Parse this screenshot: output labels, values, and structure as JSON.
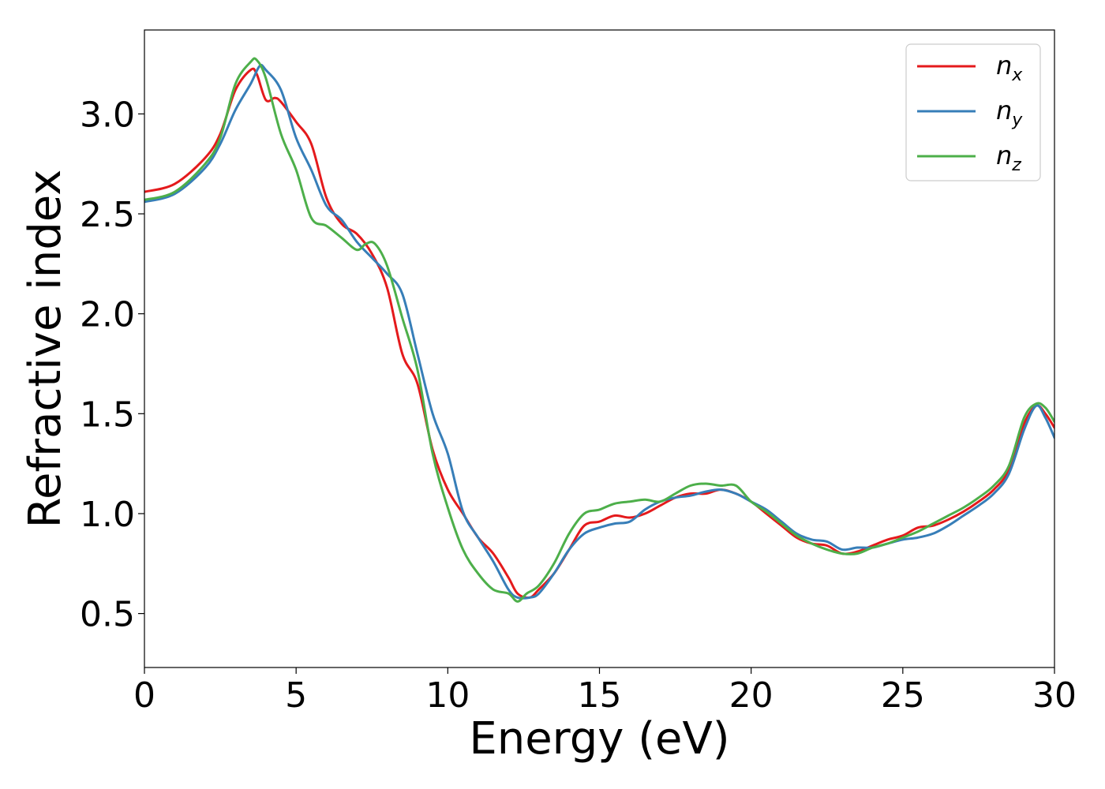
{
  "chart_data": {
    "type": "line",
    "xlabel": "Energy (eV)",
    "ylabel": "Refractive index",
    "xlim": [
      0,
      30
    ],
    "ylim": [
      0.23,
      3.42
    ],
    "xticks": [
      0,
      5,
      10,
      15,
      20,
      25,
      30
    ],
    "xtick_labels": [
      "0",
      "5",
      "10",
      "15",
      "20",
      "25",
      "30"
    ],
    "yticks": [
      0.5,
      1.0,
      1.5,
      2.0,
      2.5,
      3.0
    ],
    "ytick_labels": [
      "0.5",
      "1.0",
      "1.5",
      "2.0",
      "2.5",
      "3.0"
    ],
    "grid": false,
    "legend_position": "top-right",
    "series": [
      {
        "name": "n_x",
        "label_main": "n",
        "label_sub": "x",
        "color": "#e41a1c",
        "x": [
          0,
          1,
          2,
          2.5,
          3,
          3.5,
          3.7,
          4,
          4.3,
          4.5,
          5,
          5.5,
          6,
          6.5,
          7,
          7.5,
          8,
          8.5,
          9,
          9.5,
          10,
          10.5,
          11,
          11.5,
          12,
          12.3,
          12.7,
          13,
          13.5,
          14,
          14.5,
          15,
          15.5,
          16,
          16.5,
          17,
          17.5,
          18,
          18.5,
          19,
          19.5,
          20,
          20.5,
          21,
          21.5,
          22,
          22.5,
          23,
          23.5,
          24,
          24.5,
          25,
          25.5,
          26,
          26.5,
          27,
          27.5,
          28,
          28.5,
          29,
          29.4,
          29.7,
          30
        ],
        "y": [
          2.61,
          2.65,
          2.78,
          2.9,
          3.12,
          3.22,
          3.2,
          3.07,
          3.08,
          3.06,
          2.96,
          2.85,
          2.58,
          2.45,
          2.4,
          2.3,
          2.13,
          1.8,
          1.65,
          1.32,
          1.12,
          1.0,
          0.88,
          0.8,
          0.68,
          0.6,
          0.58,
          0.62,
          0.7,
          0.82,
          0.94,
          0.96,
          0.99,
          0.98,
          1.0,
          1.04,
          1.08,
          1.1,
          1.1,
          1.12,
          1.1,
          1.06,
          1.0,
          0.94,
          0.88,
          0.85,
          0.84,
          0.8,
          0.81,
          0.84,
          0.87,
          0.89,
          0.93,
          0.94,
          0.97,
          1.01,
          1.06,
          1.12,
          1.22,
          1.45,
          1.54,
          1.5,
          1.43
        ]
      },
      {
        "name": "n_y",
        "label_main": "n",
        "label_sub": "y",
        "color": "#377eb8",
        "x": [
          0,
          1,
          2,
          2.5,
          3,
          3.5,
          3.8,
          4,
          4.5,
          5,
          5.5,
          6,
          6.5,
          7,
          7.5,
          8,
          8.5,
          9,
          9.5,
          10,
          10.5,
          11,
          11.5,
          12,
          12.3,
          12.7,
          13,
          13.5,
          14,
          14.5,
          15,
          15.5,
          16,
          16.5,
          17,
          17.5,
          18,
          18.5,
          19,
          19.5,
          20,
          20.5,
          21,
          21.5,
          22,
          22.5,
          23,
          23.5,
          24,
          24.5,
          25,
          25.5,
          26,
          26.5,
          27,
          27.5,
          28,
          28.5,
          29,
          29.4,
          29.7,
          30
        ],
        "y": [
          2.56,
          2.6,
          2.73,
          2.85,
          3.02,
          3.15,
          3.24,
          3.22,
          3.12,
          2.88,
          2.72,
          2.54,
          2.47,
          2.36,
          2.28,
          2.2,
          2.1,
          1.8,
          1.5,
          1.3,
          1.01,
          0.88,
          0.76,
          0.62,
          0.58,
          0.58,
          0.6,
          0.7,
          0.82,
          0.9,
          0.93,
          0.95,
          0.96,
          1.02,
          1.06,
          1.08,
          1.09,
          1.11,
          1.12,
          1.1,
          1.06,
          1.02,
          0.96,
          0.9,
          0.87,
          0.86,
          0.82,
          0.83,
          0.83,
          0.85,
          0.87,
          0.88,
          0.9,
          0.94,
          0.99,
          1.04,
          1.1,
          1.2,
          1.42,
          1.54,
          1.48,
          1.38
        ]
      },
      {
        "name": "n_z",
        "label_main": "n",
        "label_sub": "z",
        "color": "#4daf4a",
        "x": [
          0,
          1,
          2,
          2.5,
          3,
          3.5,
          3.7,
          4,
          4.5,
          5,
          5.5,
          6,
          6.5,
          7,
          7.3,
          7.6,
          8,
          8.5,
          9,
          9.5,
          10,
          10.5,
          11,
          11.5,
          12,
          12.3,
          12.6,
          13,
          13.5,
          14,
          14.5,
          15,
          15.5,
          16,
          16.5,
          17,
          17.5,
          18,
          18.5,
          19,
          19.5,
          20,
          20.5,
          21,
          21.5,
          22,
          22.5,
          23,
          23.5,
          24,
          24.5,
          25,
          25.5,
          26,
          26.5,
          27,
          27.5,
          28,
          28.5,
          29,
          29.4,
          29.7,
          30
        ],
        "y": [
          2.57,
          2.61,
          2.75,
          2.88,
          3.15,
          3.26,
          3.27,
          3.18,
          2.9,
          2.72,
          2.48,
          2.44,
          2.38,
          2.32,
          2.35,
          2.35,
          2.24,
          1.98,
          1.72,
          1.3,
          1.03,
          0.82,
          0.7,
          0.62,
          0.6,
          0.56,
          0.6,
          0.64,
          0.75,
          0.9,
          1.0,
          1.02,
          1.05,
          1.06,
          1.07,
          1.06,
          1.1,
          1.14,
          1.15,
          1.14,
          1.14,
          1.06,
          1.01,
          0.95,
          0.89,
          0.85,
          0.82,
          0.8,
          0.8,
          0.83,
          0.85,
          0.88,
          0.91,
          0.95,
          0.99,
          1.03,
          1.08,
          1.14,
          1.24,
          1.48,
          1.55,
          1.53,
          1.46
        ]
      }
    ]
  }
}
